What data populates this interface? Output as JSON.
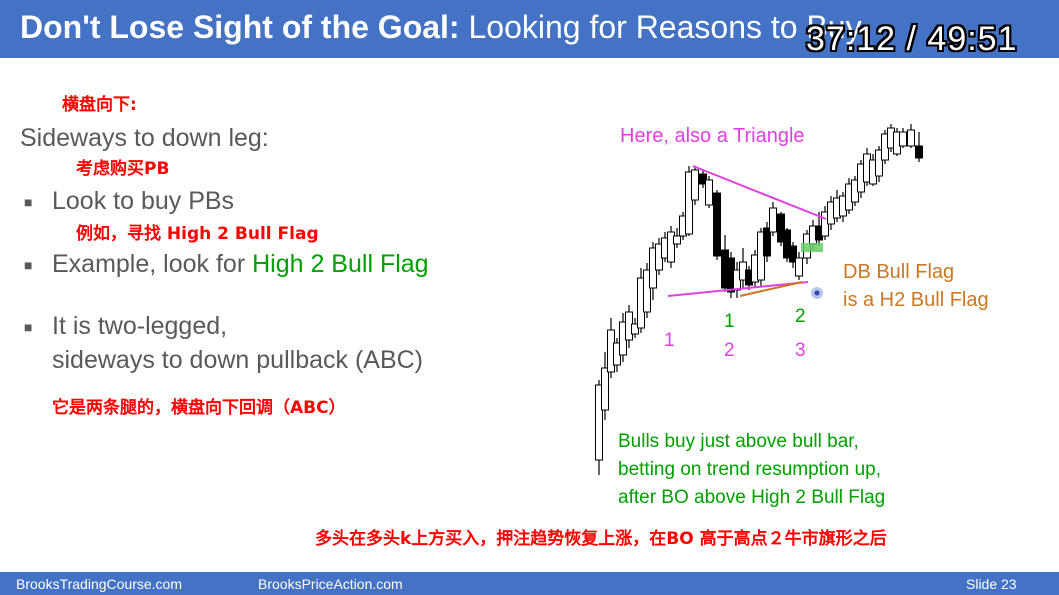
{
  "header": {
    "title_bold": "Don't Lose Sight of the Goal:",
    "title_rest": "Looking for Reasons to Buy",
    "timer": "37:12 / 49:51"
  },
  "notes": {
    "n1": "横盘向下:",
    "n2": "考虑购买PB",
    "n3": "例如，寻找 High 2 Bull Flag",
    "n4": "它是两条腿的，横盘向下回调（ABC）",
    "n5": "多头在多头k上方买入，押注趋势恢复上涨，在BO 高于高点２牛市旗形之后"
  },
  "content": {
    "heading": "Sideways to down leg:",
    "b1": "Look to buy PBs",
    "b2_pre": "Example, look for ",
    "b2_hl": "High 2 Bull Flag",
    "b3_l1": "It is two-legged,",
    "b3_l2": "sideways to down pullback (ABC)"
  },
  "chart": {
    "triangle_label": "Here, also a Triangle",
    "db_l1": "DB Bull Flag",
    "db_l2": "is a H2 Bull Flag",
    "c1": "1",
    "c2": "2",
    "m1": "1",
    "m2": "2",
    "r1": "2",
    "r2": "3",
    "bulls_l1": "Bulls buy just above bull bar,",
    "bulls_l2": "betting on trend resumption up,",
    "bulls_l3": "after BO above High 2 Bull Flag"
  },
  "footer": {
    "left": "BrooksTradingCourse.com",
    "mid": "BrooksPriceAction.com",
    "slide": "Slide  23"
  },
  "colors": {
    "accent": "#4472c4",
    "magenta": "#e040e0",
    "green": "#00a000",
    "orange": "#cc7722",
    "red": "#ff0000"
  },
  "chart_data": {
    "type": "candlestick",
    "bar_count": 39
  }
}
